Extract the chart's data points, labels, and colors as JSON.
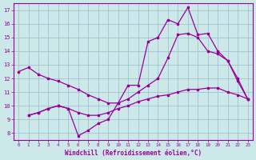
{
  "xlabel": "Windchill (Refroidissement éolien,°C)",
  "bg_color": "#cce8e8",
  "grid_color": "#99bbcc",
  "line_color": "#990099",
  "xlim": [
    -0.5,
    23.5
  ],
  "ylim": [
    7.5,
    17.5
  ],
  "yticks": [
    8,
    9,
    10,
    11,
    12,
    13,
    14,
    15,
    16,
    17
  ],
  "xticks": [
    0,
    1,
    2,
    3,
    4,
    5,
    6,
    7,
    8,
    9,
    10,
    11,
    12,
    13,
    14,
    15,
    16,
    17,
    18,
    19,
    20,
    21,
    22,
    23
  ],
  "line1_x": [
    0,
    1,
    2,
    3,
    4,
    5,
    6,
    7,
    8,
    9,
    10,
    11,
    12,
    13,
    14,
    15,
    16,
    17,
    18,
    19,
    20,
    21,
    22,
    23
  ],
  "line1_y": [
    12.5,
    12.8,
    12.3,
    12.0,
    11.8,
    11.5,
    11.2,
    10.8,
    10.5,
    10.2,
    10.2,
    10.5,
    11.0,
    11.5,
    12.0,
    13.5,
    15.2,
    15.3,
    15.0,
    14.0,
    13.8,
    13.3,
    12.0,
    10.5
  ],
  "line2_x": [
    1,
    2,
    3,
    4,
    5,
    6,
    7,
    8,
    9,
    10,
    11,
    12,
    13,
    14,
    15,
    16,
    17,
    18,
    19,
    20,
    21,
    22,
    23
  ],
  "line2_y": [
    9.3,
    9.5,
    9.8,
    10.0,
    9.8,
    7.8,
    8.2,
    8.7,
    9.0,
    10.2,
    11.5,
    11.5,
    14.7,
    15.0,
    16.3,
    16.0,
    17.2,
    15.2,
    15.3,
    14.0,
    13.3,
    11.8,
    10.5
  ],
  "line3_x": [
    1,
    2,
    3,
    4,
    5,
    6,
    7,
    8,
    9,
    10,
    11,
    12,
    13,
    14,
    15,
    16,
    17,
    18,
    19,
    20,
    21,
    22,
    23
  ],
  "line3_y": [
    9.3,
    9.5,
    9.8,
    10.0,
    9.8,
    9.5,
    9.3,
    9.3,
    9.5,
    9.8,
    10.0,
    10.3,
    10.5,
    10.7,
    10.8,
    11.0,
    11.2,
    11.2,
    11.3,
    11.3,
    11.0,
    10.8,
    10.5
  ]
}
